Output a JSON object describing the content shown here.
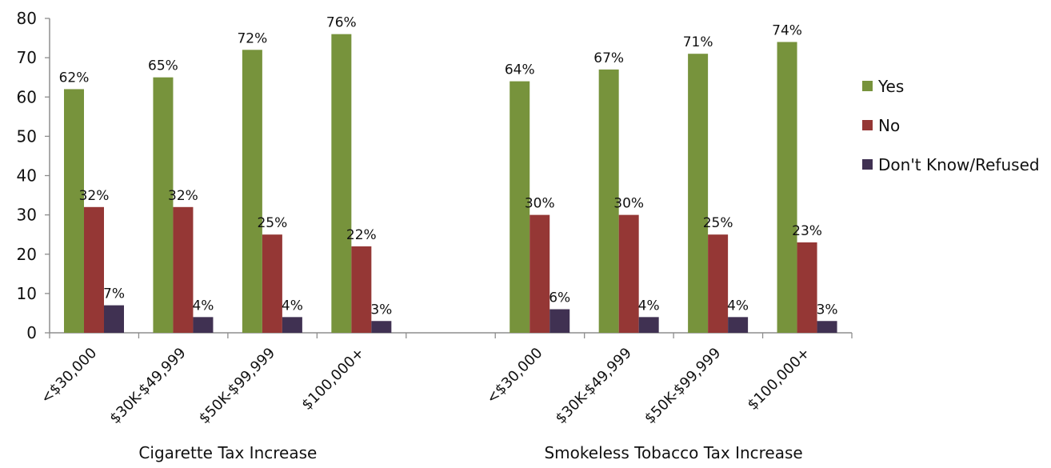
{
  "chart_data": {
    "type": "bar",
    "groups": [
      {
        "name": "Cigarette Tax Increase",
        "categories": [
          "<$30,000",
          "$30K-$49,999",
          "$50K-$99,999",
          "$100,000+"
        ],
        "series": [
          {
            "name": "Yes",
            "values": [
              62,
              65,
              72,
              76
            ],
            "labels": [
              "62%",
              "65%",
              "72%",
              "76%"
            ]
          },
          {
            "name": "No",
            "values": [
              32,
              32,
              25,
              22
            ],
            "labels": [
              "32%",
              "32%",
              "25%",
              "22%"
            ]
          },
          {
            "name": "Don't Know/Refused",
            "values": [
              7,
              4,
              4,
              3
            ],
            "labels": [
              "7%",
              "4%",
              "4%",
              "3%"
            ]
          }
        ]
      },
      {
        "name": "Smokeless Tobacco Tax Increase",
        "categories": [
          "<$30,000",
          "$30K-$49,999",
          "$50K-$99,999",
          "$100,000+"
        ],
        "series": [
          {
            "name": "Yes",
            "values": [
              64,
              67,
              71,
              74
            ],
            "labels": [
              "64%",
              "67%",
              "71%",
              "74%"
            ]
          },
          {
            "name": "No",
            "values": [
              30,
              30,
              25,
              23
            ],
            "labels": [
              "30%",
              "30%",
              "25%",
              "23%"
            ]
          },
          {
            "name": "Don't Know/Refused",
            "values": [
              6,
              4,
              4,
              3
            ],
            "labels": [
              "6%",
              "4%",
              "4%",
              "3%"
            ]
          }
        ]
      }
    ],
    "legend": {
      "placement": "right",
      "items": [
        {
          "name": "Yes",
          "color": "#77933C"
        },
        {
          "name": "No",
          "color": "#953735"
        },
        {
          "name": "Don't Know/Refused",
          "color": "#403152"
        }
      ]
    },
    "y_axis": {
      "ticks": [
        0,
        10,
        20,
        30,
        40,
        50,
        60,
        70,
        80
      ],
      "range": [
        0,
        80
      ]
    },
    "grid": false
  }
}
